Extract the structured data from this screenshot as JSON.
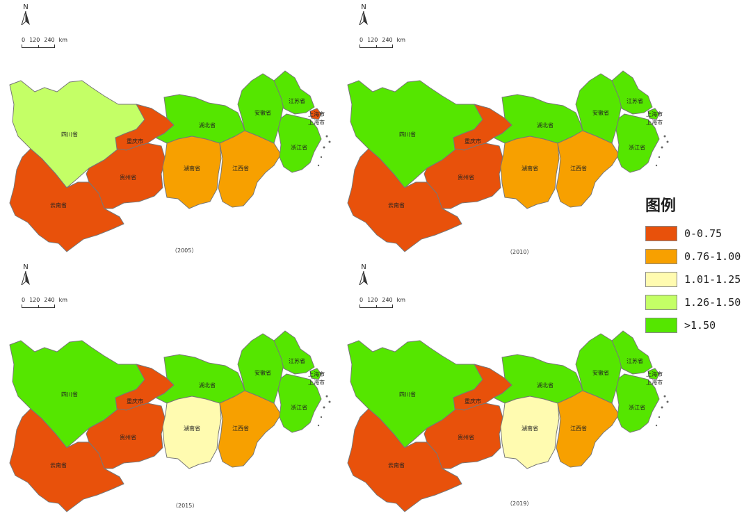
{
  "north_letter": "N",
  "scale_labels": [
    "0",
    "120",
    "240",
    "km"
  ],
  "years": [
    "（2005）",
    "（2010）",
    "（2015）",
    "（2019）"
  ],
  "provinces": {
    "sichuan": "四川省",
    "yunnan": "云南省",
    "guizhou": "贵州省",
    "chongqing": "重庆市",
    "hubei": "湖北省",
    "hunan": "湖南省",
    "jiangxi": "江西省",
    "anhui": "安徽省",
    "jiangsu": "江苏省",
    "zhejiang": "浙江省",
    "shanghai": "上海市"
  },
  "legend": {
    "title": "图例",
    "items": [
      {
        "label": "0-0.75",
        "color": "#e8510b"
      },
      {
        "label": "0.76-1.00",
        "color": "#f7a000"
      },
      {
        "label": "1.01-1.25",
        "color": "#fffbb0"
      },
      {
        "label": "1.26-1.50",
        "color": "#c4ff66"
      },
      {
        "label": ">1.50",
        "color": "#55e600"
      }
    ]
  },
  "map_data": [
    {
      "year": "2005",
      "classes": {
        "sichuan": "1.26-1.50",
        "yunnan": "0-0.75",
        "guizhou": "0-0.75",
        "chongqing": "0-0.75",
        "hubei": ">1.50",
        "hunan": "0.76-1.00",
        "jiangxi": "0.76-1.00",
        "anhui": ">1.50",
        "jiangsu": ">1.50",
        "zhejiang": ">1.50",
        "shanghai": "0-0.75"
      }
    },
    {
      "year": "2010",
      "classes": {
        "sichuan": ">1.50",
        "yunnan": "0-0.75",
        "guizhou": "0-0.75",
        "chongqing": "0-0.75",
        "hubei": ">1.50",
        "hunan": "0.76-1.00",
        "jiangxi": "0.76-1.00",
        "anhui": ">1.50",
        "jiangsu": ">1.50",
        "zhejiang": ">1.50",
        "shanghai": ">1.50"
      }
    },
    {
      "year": "2015",
      "classes": {
        "sichuan": ">1.50",
        "yunnan": "0-0.75",
        "guizhou": "0-0.75",
        "chongqing": "0-0.75",
        "hubei": ">1.50",
        "hunan": "1.01-1.25",
        "jiangxi": "0.76-1.00",
        "anhui": ">1.50",
        "jiangsu": ">1.50",
        "zhejiang": ">1.50",
        "shanghai": ">1.50"
      }
    },
    {
      "year": "2019",
      "classes": {
        "sichuan": ">1.50",
        "yunnan": "0-0.75",
        "guizhou": "0-0.75",
        "chongqing": "0-0.75",
        "hubei": ">1.50",
        "hunan": "1.01-1.25",
        "jiangxi": "0.76-1.00",
        "anhui": ">1.50",
        "jiangsu": ">1.50",
        "zhejiang": ">1.50",
        "shanghai": ">1.50"
      }
    }
  ]
}
